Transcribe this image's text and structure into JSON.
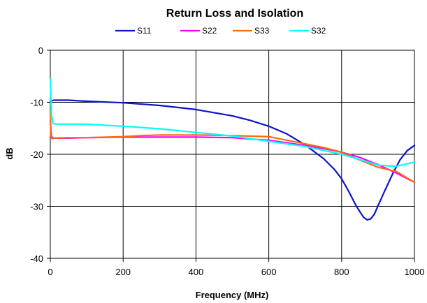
{
  "chart_data": {
    "type": "line",
    "title": "Return Loss and Isolation",
    "xlabel": "Frequency (MHz)",
    "ylabel": "dB",
    "xlim": [
      0,
      1000
    ],
    "ylim": [
      -40,
      0
    ],
    "xticks": [
      0,
      200,
      400,
      600,
      800,
      1000
    ],
    "yticks": [
      0,
      -10,
      -20,
      -30,
      -40
    ],
    "grid": true,
    "legend_position": "top",
    "series": [
      {
        "name": "S11",
        "color": "#0a14c8",
        "x": [
          0,
          10,
          50,
          100,
          200,
          300,
          400,
          500,
          550,
          600,
          650,
          700,
          750,
          780,
          800,
          820,
          840,
          860,
          870,
          880,
          890,
          900,
          920,
          940,
          960,
          980,
          1000
        ],
        "y": [
          -9.8,
          -9.6,
          -9.6,
          -9.8,
          -10.1,
          -10.6,
          -11.4,
          -12.6,
          -13.5,
          -14.6,
          -16.1,
          -18.2,
          -20.8,
          -22.9,
          -24.7,
          -27.2,
          -29.9,
          -32.1,
          -32.6,
          -32.4,
          -31.5,
          -29.9,
          -26.8,
          -23.8,
          -21.1,
          -19.3,
          -18.3
        ]
      },
      {
        "name": "S22",
        "color": "#ff00ff",
        "x": [
          0,
          3,
          10,
          50,
          100,
          200,
          300,
          400,
          500,
          600,
          650,
          700,
          750,
          800,
          850,
          900,
          950,
          1000
        ],
        "y": [
          -13.5,
          -16.6,
          -16.9,
          -16.9,
          -16.8,
          -16.7,
          -16.7,
          -16.7,
          -16.8,
          -17.3,
          -17.8,
          -18.3,
          -18.9,
          -19.6,
          -20.6,
          -22.0,
          -23.6,
          -25.4
        ]
      },
      {
        "name": "S33",
        "color": "#ff6a0a",
        "x": [
          0,
          2,
          5,
          10,
          50,
          100,
          200,
          250,
          300,
          400,
          500,
          600,
          650,
          700,
          750,
          800,
          850,
          900,
          950,
          1000
        ],
        "y": [
          -11.5,
          -16.5,
          -17.0,
          -16.9,
          -16.8,
          -16.8,
          -16.6,
          -16.4,
          -16.3,
          -16.3,
          -16.4,
          -16.6,
          -17.3,
          -18.0,
          -18.7,
          -19.6,
          -21.1,
          -22.5,
          -23.3,
          -25.4
        ]
      },
      {
        "name": "S32",
        "color": "#00ffff",
        "x": [
          0,
          3,
          8,
          20,
          100,
          200,
          300,
          400,
          500,
          600,
          700,
          800,
          850,
          900,
          950,
          1000
        ],
        "y": [
          -5.5,
          -12.5,
          -14.1,
          -14.2,
          -14.2,
          -14.6,
          -15.1,
          -15.8,
          -16.5,
          -17.5,
          -18.5,
          -20.0,
          -21.0,
          -22.1,
          -22.3,
          -21.5
        ]
      }
    ]
  }
}
